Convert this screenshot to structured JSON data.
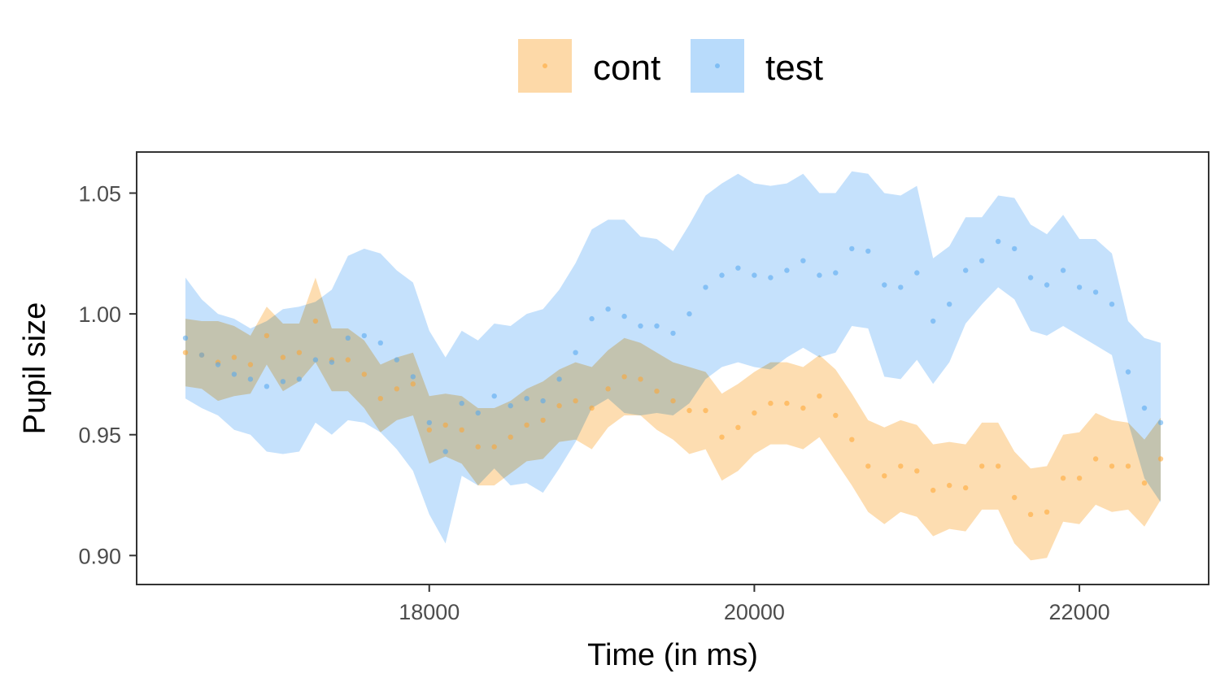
{
  "chart_data": {
    "type": "line",
    "subtype": "ribbon with points",
    "xlabel": "Time (in ms)",
    "ylabel": "Pupil size",
    "xlim": [
      16500,
      22500
    ],
    "ylim": [
      0.888,
      1.067
    ],
    "x_ticks": [
      18000,
      20000,
      22000
    ],
    "x_tick_labels": [
      "18000",
      "20000",
      "22000"
    ],
    "y_ticks": [
      0.9,
      0.95,
      1.0,
      1.05
    ],
    "y_tick_labels": [
      "0.90",
      "0.95",
      "1.00",
      "1.05"
    ],
    "grid": false,
    "legend_position": "top",
    "x": [
      16500,
      16600,
      16700,
      16800,
      16900,
      17000,
      17100,
      17200,
      17300,
      17400,
      17500,
      17600,
      17700,
      17800,
      17900,
      18000,
      18100,
      18200,
      18300,
      18400,
      18500,
      18600,
      18700,
      18800,
      18900,
      19000,
      19100,
      19200,
      19300,
      19400,
      19500,
      19600,
      19700,
      19800,
      19900,
      20000,
      20100,
      20200,
      20300,
      20400,
      20500,
      20600,
      20700,
      20800,
      20900,
      21000,
      21100,
      21200,
      21300,
      21400,
      21500,
      21600,
      21700,
      21800,
      21900,
      22000,
      22100,
      22200,
      22300,
      22400,
      22500
    ],
    "series": [
      {
        "name": "cont",
        "color": "#ffa42e",
        "fill": "#fdd9a8",
        "mean": [
          0.984,
          0.983,
          0.98,
          0.982,
          0.979,
          0.991,
          0.982,
          0.984,
          0.997,
          0.981,
          0.981,
          0.975,
          0.965,
          0.969,
          0.971,
          0.952,
          0.954,
          0.952,
          0.945,
          0.945,
          0.949,
          0.954,
          0.956,
          0.962,
          0.964,
          0.961,
          0.969,
          0.974,
          0.973,
          0.968,
          0.964,
          0.96,
          0.96,
          0.949,
          0.953,
          0.959,
          0.963,
          0.963,
          0.961,
          0.966,
          0.958,
          0.948,
          0.937,
          0.933,
          0.937,
          0.935,
          0.927,
          0.929,
          0.928,
          0.937,
          0.937,
          0.924,
          0.917,
          0.918,
          0.932,
          0.932,
          0.94,
          0.937,
          0.937,
          0.93,
          0.94
        ],
        "upper": [
          0.998,
          0.997,
          0.997,
          0.995,
          0.991,
          1.003,
          0.996,
          0.996,
          1.015,
          0.994,
          0.994,
          0.989,
          0.979,
          0.982,
          0.984,
          0.966,
          0.967,
          0.966,
          0.961,
          0.961,
          0.964,
          0.969,
          0.972,
          0.977,
          0.98,
          0.978,
          0.985,
          0.99,
          0.988,
          0.984,
          0.98,
          0.978,
          0.976,
          0.967,
          0.971,
          0.976,
          0.98,
          0.98,
          0.978,
          0.983,
          0.977,
          0.967,
          0.956,
          0.953,
          0.956,
          0.954,
          0.946,
          0.947,
          0.946,
          0.955,
          0.955,
          0.943,
          0.936,
          0.937,
          0.95,
          0.951,
          0.959,
          0.956,
          0.955,
          0.948,
          0.957
        ],
        "lower": [
          0.97,
          0.969,
          0.964,
          0.966,
          0.967,
          0.979,
          0.968,
          0.972,
          0.98,
          0.968,
          0.968,
          0.961,
          0.951,
          0.956,
          0.958,
          0.938,
          0.941,
          0.938,
          0.929,
          0.929,
          0.934,
          0.939,
          0.94,
          0.947,
          0.948,
          0.944,
          0.953,
          0.958,
          0.958,
          0.952,
          0.948,
          0.942,
          0.944,
          0.931,
          0.935,
          0.942,
          0.946,
          0.946,
          0.944,
          0.949,
          0.939,
          0.929,
          0.918,
          0.913,
          0.918,
          0.916,
          0.908,
          0.911,
          0.91,
          0.919,
          0.919,
          0.905,
          0.898,
          0.899,
          0.914,
          0.913,
          0.921,
          0.918,
          0.919,
          0.912,
          0.923
        ]
      },
      {
        "name": "test",
        "color": "#50a6ef",
        "fill": "#b8dbfb",
        "mean": [
          0.99,
          0.983,
          0.979,
          0.975,
          0.973,
          0.97,
          0.972,
          0.973,
          0.981,
          0.98,
          0.99,
          0.991,
          0.988,
          0.981,
          0.974,
          0.955,
          0.943,
          0.963,
          0.959,
          0.966,
          0.962,
          0.965,
          0.964,
          0.973,
          0.984,
          0.998,
          1.002,
          0.999,
          0.995,
          0.995,
          0.992,
          1.0,
          1.011,
          1.016,
          1.019,
          1.016,
          1.015,
          1.018,
          1.022,
          1.016,
          1.017,
          1.027,
          1.026,
          1.012,
          1.011,
          1.017,
          0.997,
          1.004,
          1.018,
          1.022,
          1.03,
          1.027,
          1.015,
          1.012,
          1.018,
          1.011,
          1.009,
          1.004,
          0.976,
          0.961,
          0.955
        ],
        "upper": [
          1.015,
          1.006,
          1.0,
          0.998,
          0.994,
          0.997,
          1.002,
          1.003,
          1.005,
          1.01,
          1.024,
          1.027,
          1.025,
          1.018,
          1.013,
          0.993,
          0.982,
          0.993,
          0.989,
          0.996,
          0.995,
          1.0,
          1.002,
          1.01,
          1.021,
          1.035,
          1.039,
          1.039,
          1.032,
          1.031,
          1.026,
          1.037,
          1.049,
          1.054,
          1.058,
          1.054,
          1.053,
          1.054,
          1.058,
          1.05,
          1.05,
          1.059,
          1.058,
          1.05,
          1.049,
          1.053,
          1.023,
          1.028,
          1.04,
          1.04,
          1.049,
          1.048,
          1.037,
          1.033,
          1.041,
          1.031,
          1.031,
          1.025,
          0.997,
          0.99,
          0.988
        ],
        "lower": [
          0.965,
          0.961,
          0.958,
          0.952,
          0.95,
          0.943,
          0.942,
          0.943,
          0.955,
          0.95,
          0.956,
          0.955,
          0.951,
          0.944,
          0.935,
          0.917,
          0.905,
          0.933,
          0.929,
          0.936,
          0.929,
          0.93,
          0.926,
          0.936,
          0.947,
          0.961,
          0.965,
          0.959,
          0.958,
          0.959,
          0.958,
          0.963,
          0.973,
          0.978,
          0.98,
          0.978,
          0.977,
          0.982,
          0.986,
          0.982,
          0.984,
          0.995,
          0.994,
          0.974,
          0.973,
          0.981,
          0.971,
          0.98,
          0.996,
          1.004,
          1.011,
          1.006,
          0.993,
          0.991,
          0.995,
          0.991,
          0.987,
          0.983,
          0.955,
          0.932,
          0.922
        ]
      }
    ]
  }
}
